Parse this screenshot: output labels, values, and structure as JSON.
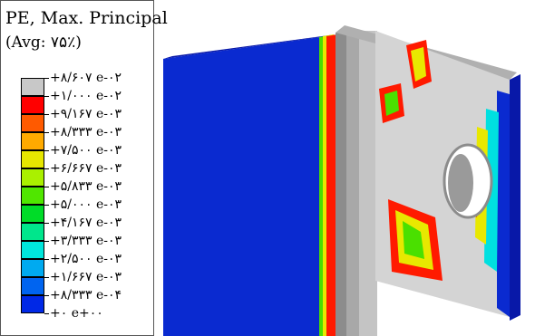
{
  "legend": {
    "title": "PE, Max. Principal",
    "averaging": "(Avg: ۷۵٪)",
    "levels": [
      {
        "label": "+۸/۶۰۷ e-۰۲",
        "color": "#c8c8c8"
      },
      {
        "label": "+۱/۰۰۰ e-۰۲",
        "color": "#ff0000"
      },
      {
        "label": "+۹/۱۶۷ e-۰۳",
        "color": "#ff5a00"
      },
      {
        "label": "+۸/۳۳۳ e-۰۳",
        "color": "#ffaa00"
      },
      {
        "label": "+۷/۵۰۰ e-۰۳",
        "color": "#e6e600"
      },
      {
        "label": "+۶/۶۶۷ e-۰۳",
        "color": "#aaf000"
      },
      {
        "label": "+۵/۸۳۳ e-۰۳",
        "color": "#50e600"
      },
      {
        "label": "+۵/۰۰۰ e-۰۳",
        "color": "#00dc28"
      },
      {
        "label": "+۴/۱۶۷ e-۰۳",
        "color": "#00e68c"
      },
      {
        "label": "+۳/۳۳۳ e-۰۳",
        "color": "#00e6dc"
      },
      {
        "label": "+۲/۵۰۰ e-۰۳",
        "color": "#00aaf0"
      },
      {
        "label": "+۱/۶۶۷ e-۰۳",
        "color": "#0064f0"
      },
      {
        "label": "+۸/۳۳۳ e-۰۴",
        "color": "#0028e6"
      },
      {
        "label": "+۰ e+۰۰",
        "color": "#0000c8"
      }
    ]
  },
  "model": {
    "description_icon": "angle-bracket-fea-contour",
    "colors": {
      "face_blue": "#0a2ad0",
      "side_blue": "#0818a8",
      "gray_light": "#d4d4d4",
      "gray_mid": "#b8b8b8",
      "gray_dark": "#8c8c8c",
      "red": "#ff1a00",
      "orange": "#ff9a00",
      "yellow": "#e8e800",
      "green": "#4ae000",
      "cyan": "#00e0e0"
    }
  }
}
